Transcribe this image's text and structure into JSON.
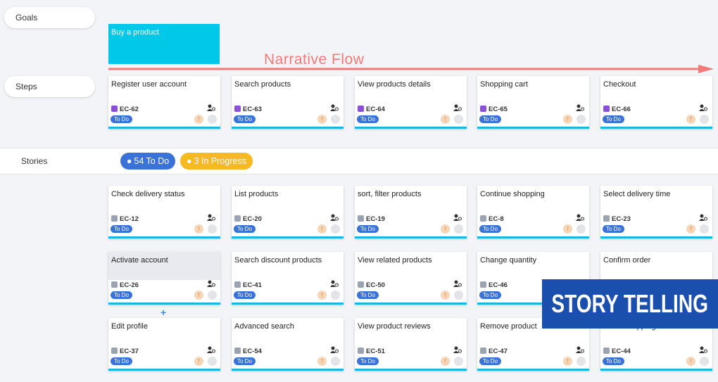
{
  "lanes": {
    "goals": "Goals",
    "steps": "Steps",
    "stories": "Stories"
  },
  "goal": {
    "title": "Buy a product"
  },
  "flow_label": "Narrative Flow",
  "steps": [
    {
      "title": "Register user account",
      "key": "EC-62",
      "status": "To Do"
    },
    {
      "title": "Search products",
      "key": "EC-63",
      "status": "To Do"
    },
    {
      "title": "View products details",
      "key": "EC-64",
      "status": "To Do"
    },
    {
      "title": "Shopping cart",
      "key": "EC-65",
      "status": "To Do"
    },
    {
      "title": "Checkout",
      "key": "EC-66",
      "status": "To Do"
    }
  ],
  "story_counts": [
    "54 To Do",
    "3 In Progress"
  ],
  "stories": [
    [
      {
        "title": "Check delivery status",
        "key": "EC-12",
        "status": "To Do"
      },
      {
        "title": "List products",
        "key": "EC-20",
        "status": "To Do"
      },
      {
        "title": "sort, filter products",
        "key": "EC-19",
        "status": "To Do"
      },
      {
        "title": "Continue shopping",
        "key": "EC-8",
        "status": "To Do"
      },
      {
        "title": "Select delivery time",
        "key": "EC-23",
        "status": "To Do"
      }
    ],
    [
      {
        "title": "Activate account",
        "key": "EC-26",
        "status": "To Do"
      },
      {
        "title": "Search discount products",
        "key": "EC-41",
        "status": "To Do"
      },
      {
        "title": "View related products",
        "key": "EC-50",
        "status": "To Do"
      },
      {
        "title": "Change quantity",
        "key": "EC-46",
        "status": "To Do"
      },
      {
        "title": "Confirm order"
      }
    ],
    [
      {
        "title": "Edit profile",
        "key": "EC-37",
        "status": "To Do"
      },
      {
        "title": "Advanced search",
        "key": "EC-54",
        "status": "To Do"
      },
      {
        "title": "View product reviews",
        "key": "EC-51",
        "status": "To Do"
      },
      {
        "title": "Remove product",
        "key": "EC-47",
        "status": "To Do"
      },
      {
        "title": "Select shipping address",
        "key": "EC-44",
        "status": "To Do"
      }
    ]
  ],
  "add_button": "+",
  "banner": "STORY TELLING"
}
